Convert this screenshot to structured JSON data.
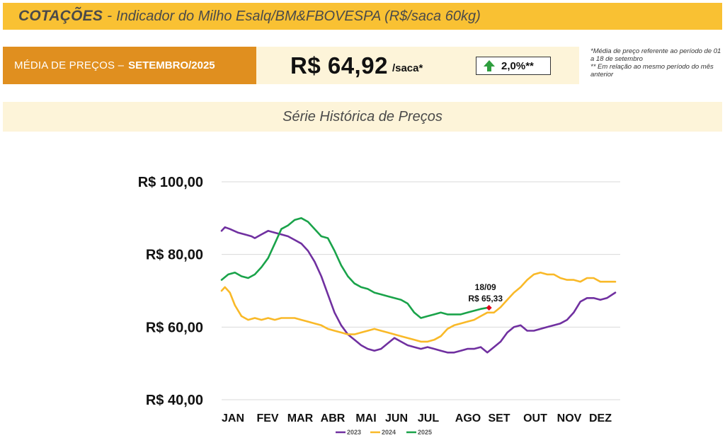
{
  "header": {
    "brand": "COTAÇÕES",
    "separator": "-",
    "subtitle": "Indicador do Milho Esalq/BM&FBOVESPA (R$/saca 60kg)"
  },
  "average": {
    "label": "MÉDIA DE PREÇOS –",
    "month": "SETEMBRO/2025",
    "price": "R$ 64,92",
    "unit": "/saca*",
    "change": "2,0%**",
    "change_direction": "up",
    "up_color": "#2e9e3e"
  },
  "notes": {
    "line1": "*Média de preço referente ao período de 01 a 18 de setembro",
    "line2": "** Em relação ao mesmo período do mês anterior"
  },
  "series_title": "Série Histórica de Preços",
  "chart_data": {
    "type": "line",
    "title": "Série Histórica de Preços",
    "x_unit": "month_of_year",
    "xlim": [
      0,
      12
    ],
    "ylim": [
      40,
      100
    ],
    "yticks": [
      40,
      60,
      80,
      100
    ],
    "ytick_labels": [
      "R$ 40,00",
      "R$ 60,00",
      "R$ 80,00",
      "R$ 100,00"
    ],
    "month_labels": [
      "JAN",
      "FEV",
      "MAR",
      "ABR",
      "MAI",
      "JUN",
      "JUL",
      "AGO",
      "SET",
      "OUT",
      "NOV",
      "DEZ"
    ],
    "grid": true,
    "legend_position": "bottom-center",
    "series": [
      {
        "name": "2023",
        "color": "#7030a0",
        "x": [
          0.0,
          0.1,
          0.25,
          0.5,
          0.7,
          0.9,
          1.0,
          1.2,
          1.4,
          1.6,
          1.8,
          2.0,
          2.2,
          2.4,
          2.6,
          2.8,
          3.0,
          3.2,
          3.4,
          3.6,
          3.8,
          4.0,
          4.2,
          4.4,
          4.6,
          4.8,
          5.0,
          5.2,
          5.4,
          5.6,
          5.8,
          6.0,
          6.2,
          6.4,
          6.6,
          6.8,
          7.0,
          7.2,
          7.4,
          7.6,
          7.8,
          8.0,
          8.2,
          8.4,
          8.6,
          8.8,
          9.0,
          9.2,
          9.4,
          9.6,
          9.8,
          10.0,
          10.2,
          10.4,
          10.6,
          10.8,
          11.0,
          11.2,
          11.4,
          11.6,
          11.85
        ],
        "y": [
          86.5,
          87.5,
          87.0,
          86.0,
          85.5,
          85.0,
          84.5,
          85.5,
          86.5,
          86.0,
          85.5,
          85.0,
          84.0,
          83.0,
          81.0,
          78.0,
          74.0,
          69.0,
          64.0,
          60.5,
          58.0,
          56.5,
          55.0,
          54.0,
          53.5,
          54.0,
          55.5,
          57.0,
          56.0,
          55.0,
          54.5,
          54.0,
          54.5,
          54.0,
          53.5,
          53.0,
          53.0,
          53.5,
          54.0,
          54.0,
          54.5,
          53.0,
          54.5,
          56.0,
          58.5,
          60.0,
          60.5,
          59.0,
          59.0,
          59.5,
          60.0,
          60.5,
          61.0,
          62.0,
          64.0,
          67.0,
          68.0,
          68.0,
          67.5,
          68.0,
          69.5
        ]
      },
      {
        "name": "2024",
        "color": "#f9b928",
        "x": [
          0.0,
          0.1,
          0.25,
          0.4,
          0.6,
          0.8,
          1.0,
          1.2,
          1.4,
          1.6,
          1.8,
          2.0,
          2.2,
          2.4,
          2.6,
          2.8,
          3.0,
          3.2,
          3.4,
          3.6,
          3.8,
          4.0,
          4.2,
          4.4,
          4.6,
          4.8,
          5.0,
          5.2,
          5.4,
          5.6,
          5.8,
          6.0,
          6.2,
          6.4,
          6.6,
          6.8,
          7.0,
          7.2,
          7.4,
          7.6,
          7.8,
          8.0,
          8.2,
          8.4,
          8.6,
          8.8,
          9.0,
          9.2,
          9.4,
          9.6,
          9.8,
          10.0,
          10.2,
          10.4,
          10.6,
          10.8,
          11.0,
          11.2,
          11.4,
          11.6,
          11.85
        ],
        "y": [
          70.0,
          71.0,
          69.5,
          66.0,
          63.0,
          62.0,
          62.5,
          62.0,
          62.5,
          62.0,
          62.5,
          62.5,
          62.5,
          62.0,
          61.5,
          61.0,
          60.5,
          59.5,
          59.0,
          58.5,
          58.0,
          58.0,
          58.5,
          59.0,
          59.5,
          59.0,
          58.5,
          58.0,
          57.5,
          57.0,
          56.5,
          56.0,
          56.0,
          56.5,
          57.5,
          59.5,
          60.5,
          61.0,
          61.5,
          62.0,
          63.0,
          64.0,
          64.0,
          65.5,
          67.5,
          69.5,
          71.0,
          73.0,
          74.5,
          75.0,
          74.5,
          74.5,
          73.5,
          73.0,
          73.0,
          72.5,
          73.5,
          73.5,
          72.5,
          72.5,
          72.5
        ]
      },
      {
        "name": "2025",
        "color": "#1aa34a",
        "x": [
          0.0,
          0.2,
          0.4,
          0.6,
          0.8,
          1.0,
          1.2,
          1.4,
          1.6,
          1.8,
          2.0,
          2.2,
          2.4,
          2.6,
          2.8,
          3.0,
          3.2,
          3.4,
          3.6,
          3.8,
          4.0,
          4.2,
          4.4,
          4.6,
          4.8,
          5.0,
          5.2,
          5.4,
          5.6,
          5.8,
          6.0,
          6.2,
          6.4,
          6.6,
          6.8,
          7.0,
          7.2,
          7.4,
          7.6,
          7.8,
          8.0,
          8.05
        ],
        "y": [
          73.0,
          74.5,
          75.0,
          74.0,
          73.5,
          74.5,
          76.5,
          79.0,
          83.0,
          87.0,
          88.0,
          89.5,
          90.0,
          89.0,
          87.0,
          85.0,
          84.5,
          81.0,
          77.0,
          74.0,
          72.0,
          71.0,
          70.5,
          69.5,
          69.0,
          68.5,
          68.0,
          67.5,
          66.5,
          64.0,
          62.5,
          63.0,
          63.5,
          64.0,
          63.5,
          63.5,
          63.5,
          64.0,
          64.5,
          65.0,
          65.33,
          65.33
        ]
      }
    ],
    "annotation": {
      "date": "18/09",
      "value_label": "R$ 65,33",
      "x": 8.05,
      "y": 65.33,
      "marker_color": "#e0001b"
    }
  }
}
